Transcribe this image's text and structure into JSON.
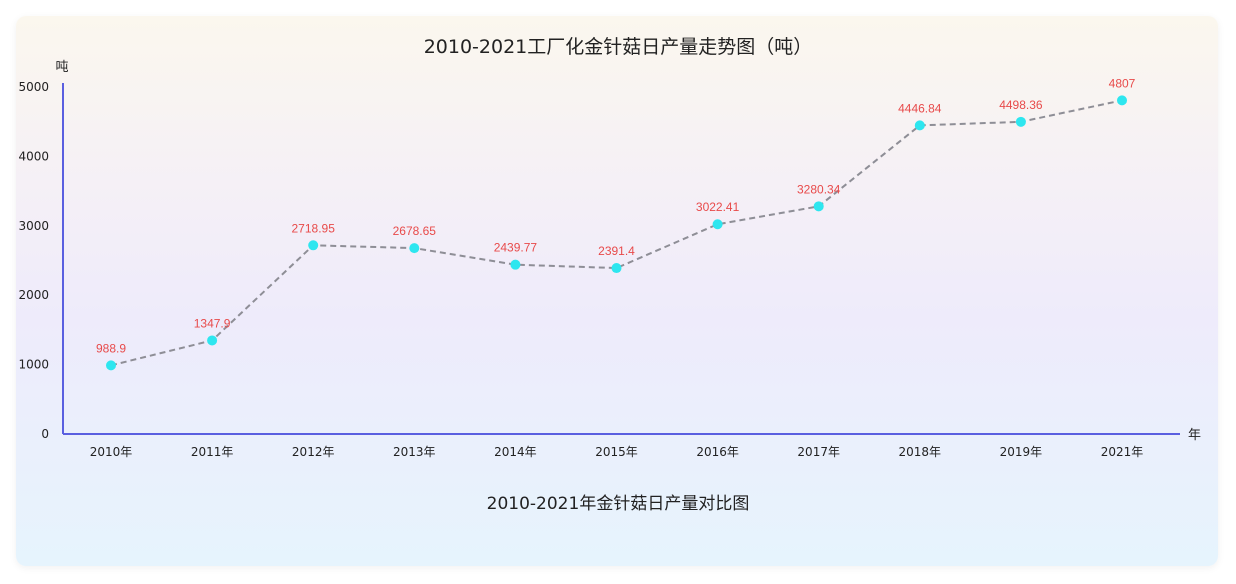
{
  "chart_data": {
    "type": "line",
    "title": "2010-2021工厂化金针菇日产量走势图（吨）",
    "subtitle": "2010-2021年金针菇日产量对比图",
    "ylabel": "吨",
    "xlabel": "年",
    "categories": [
      "2010年",
      "2011年",
      "2012年",
      "2013年",
      "2014年",
      "2015年",
      "2016年",
      "2017年",
      "2018年",
      "2019年",
      "2021年"
    ],
    "series": [
      {
        "values": [
          988.9,
          1347.9,
          2718.95,
          2678.65,
          2439.77,
          2391.4,
          3022.41,
          3280.34,
          4446.84,
          4498.36,
          4807
        ]
      }
    ],
    "ylim": [
      0,
      5000
    ],
    "yticks": [
      0,
      1000,
      2000,
      3000,
      4000,
      5000
    ],
    "grid": false,
    "line_style": "dashed",
    "line_color": "#8e8e96",
    "marker_color": "#2ee6ef",
    "label_color": "#e84a4a",
    "axis_color": "#5a5fe0"
  }
}
